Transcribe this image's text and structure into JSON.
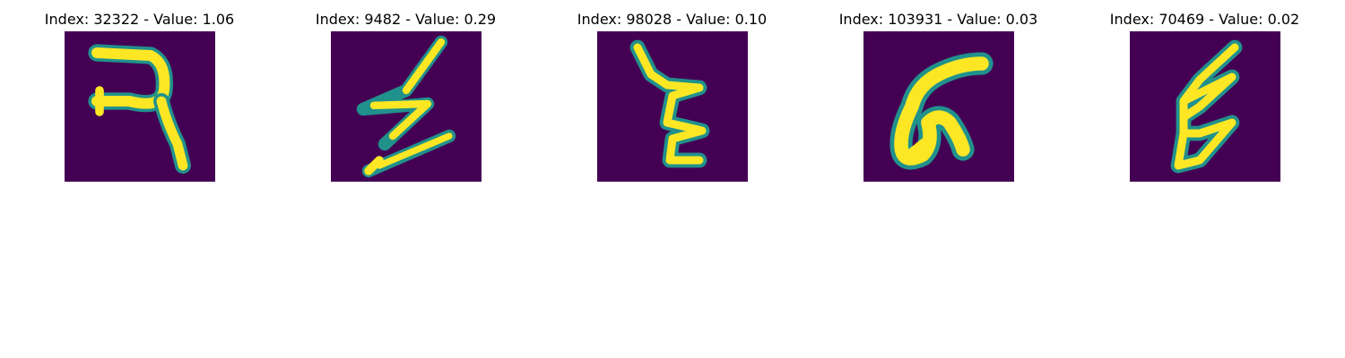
{
  "panels": [
    {
      "title": "Index: 32322 - Value: 1.06"
    },
    {
      "title": "Index: 9482 - Value: 0.29"
    },
    {
      "title": "Index: 98028 - Value: 0.10"
    },
    {
      "title": "Index: 103931 - Value: 0.03"
    },
    {
      "title": "Index: 70469 - Value: 0.02"
    }
  ],
  "colors": {
    "background": "#440154",
    "mid": "#21918c",
    "high": "#fde725",
    "green": "#5ec962"
  }
}
